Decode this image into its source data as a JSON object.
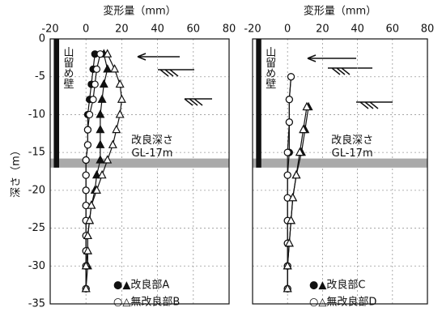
{
  "chart_data": [
    {
      "type": "scatter",
      "xlabel": "変形量（mm）",
      "ylabel": "深さ（m）",
      "xlim": [
        -20,
        80
      ],
      "xticks": [
        -20,
        0,
        20,
        40,
        60,
        80
      ],
      "ylim": [
        -35,
        0
      ],
      "yticks": [
        0,
        -5,
        -10,
        -15,
        -20,
        -25,
        -30,
        -35
      ],
      "grid": true,
      "wall": {
        "label": "山留め壁",
        "xlim": [
          -18,
          -15
        ],
        "ylim": [
          -17,
          0
        ]
      },
      "band": {
        "label": "改良深さ",
        "sublabel": "GL-17m",
        "ylim": [
          -17,
          -15.8
        ]
      },
      "legend": "lower center",
      "series": [
        {
          "name": "●▲改良部A",
          "color": "#111111",
          "circle": {
            "y": [
              -2,
              -4,
              -6,
              -8,
              -10,
              -12,
              -14,
              -16,
              -18,
              -20,
              -22,
              -24,
              -26,
              -28,
              -30,
              -33
            ],
            "x": [
              5,
              4,
              3,
              2,
              1,
              1,
              1,
              0,
              0,
              0,
              0,
              0,
              0,
              0,
              0,
              0
            ]
          },
          "triangle": {
            "y": [
              -2,
              -4,
              -6,
              -8,
              -10,
              -12,
              -14,
              -16,
              -18,
              -20,
              -22,
              -24,
              -26,
              -28,
              -30,
              -33
            ],
            "x": [
              10,
              12,
              10,
              9,
              8,
              8,
              8,
              8,
              6,
              5,
              3,
              2,
              1,
              1,
              1,
              0
            ]
          }
        },
        {
          "name": "○△無改良部B",
          "color": "#ffffff",
          "circle": {
            "y": [
              -2,
              -4,
              -6,
              -8,
              -10,
              -12,
              -14,
              -16,
              -18,
              -20,
              -22,
              -24,
              -26,
              -28,
              -30,
              -33
            ],
            "x": [
              8,
              6,
              5,
              4,
              2,
              1,
              1,
              0,
              0,
              0,
              0,
              0,
              0,
              0,
              0,
              0
            ]
          },
          "triangle": {
            "y": [
              -2,
              -4,
              -6,
              -8,
              -10,
              -12,
              -14,
              -16,
              -18,
              -20,
              -22,
              -24,
              -26,
              -28,
              -30,
              -33
            ],
            "x": [
              12,
              16,
              19,
              20,
              19,
              17,
              15,
              12,
              9,
              6,
              3,
              2,
              1,
              1,
              0,
              0
            ]
          }
        }
      ]
    },
    {
      "type": "scatter",
      "xlabel": "変形量（mm）",
      "xlim": [
        -20,
        80
      ],
      "xticks": [
        -20,
        0,
        20,
        40,
        60,
        80
      ],
      "ylim": [
        -35,
        0
      ],
      "yticks": [
        0,
        -5,
        -10,
        -15,
        -20,
        -25,
        -30,
        -35
      ],
      "grid": true,
      "wall": {
        "label": "山留め壁",
        "xlim": [
          -18,
          -15
        ],
        "ylim": [
          -17,
          0
        ]
      },
      "band": {
        "label": "改良深さ",
        "sublabel": "GL-17m",
        "ylim": [
          -17,
          -15.8
        ]
      },
      "legend": "lower center",
      "series": [
        {
          "name": "●▲改良部C",
          "color": "#111111",
          "circle": {
            "y": [
              -5,
              -8,
              -11,
              -15,
              -18,
              -21,
              -24,
              -27,
              -30,
              -33
            ],
            "x": [
              2,
              1,
              1,
              1,
              0,
              0,
              0,
              0,
              0,
              0
            ]
          },
          "triangle": {
            "y": [
              -9,
              -12,
              -15,
              -18,
              -21,
              -24,
              -27,
              -30,
              -33
            ],
            "x": [
              12,
              10,
              8,
              5,
              3,
              2,
              1,
              0,
              0
            ]
          }
        },
        {
          "name": "○△無改良部D",
          "color": "#ffffff",
          "circle": {
            "y": [
              -5,
              -8,
              -11,
              -15,
              -18,
              -21,
              -24,
              -27,
              -30,
              -33
            ],
            "x": [
              2,
              1,
              1,
              0,
              0,
              0,
              0,
              0,
              0,
              0
            ]
          },
          "triangle": {
            "y": [
              -9,
              -12,
              -15,
              -18,
              -21,
              -24,
              -27,
              -30,
              -33
            ],
            "x": [
              11,
              9,
              7,
              5,
              3,
              2,
              1,
              0,
              0
            ]
          }
        }
      ]
    }
  ]
}
